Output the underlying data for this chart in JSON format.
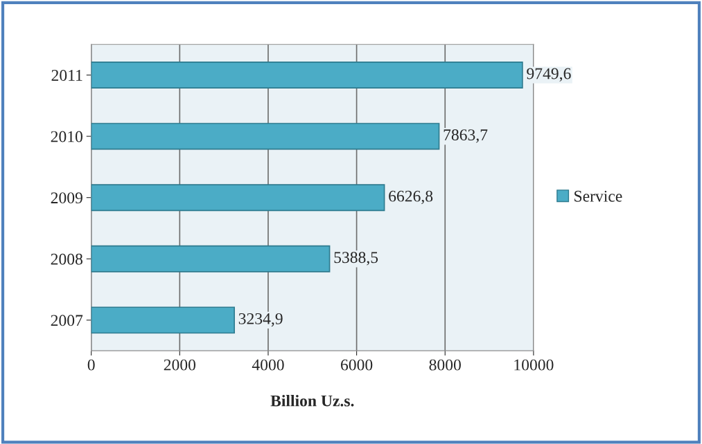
{
  "chart_data": {
    "type": "bar",
    "orientation": "horizontal",
    "xlabel": "Billion Uz.s.",
    "categories": [
      "2011",
      "2010",
      "2009",
      "2008",
      "2007"
    ],
    "series": [
      {
        "name": "Service",
        "color": "#4bacc6",
        "values": [
          9749.6,
          7863.7,
          6626.8,
          5388.5,
          3234.9
        ],
        "value_labels": [
          "9749,6",
          "7863,7",
          "6626,8",
          "5388,5",
          "3234,9"
        ]
      }
    ],
    "xlim": [
      0,
      10000
    ],
    "xticks": [
      0,
      2000,
      4000,
      6000,
      8000,
      10000
    ],
    "grid": "x",
    "legend": "right"
  }
}
